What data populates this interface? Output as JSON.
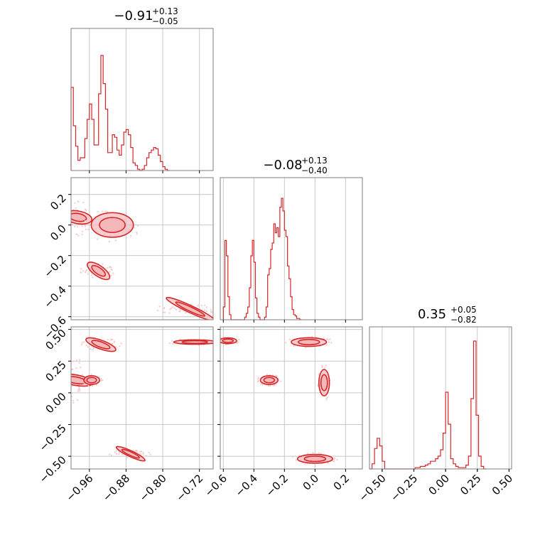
{
  "colors": {
    "main": "#d62728",
    "fill": "#f4b8ba",
    "scatter": "#f7c9cb",
    "grid": "#c8c8c8",
    "frame": "#7f7f7f"
  },
  "chart_data": {
    "type": "corner",
    "parameters": [
      {
        "median": "−0.91",
        "upper": "+0.13",
        "lower": "−0.05",
        "range": [
          -1.0,
          -0.69
        ],
        "ticks": [
          -0.96,
          -0.88,
          -0.8,
          -0.72
        ],
        "tick_labels": [
          "−0.96",
          "−0.88",
          "−0.80",
          "−0.72"
        ]
      },
      {
        "median": "−0.08",
        "upper": "+0.13",
        "lower": "−0.40",
        "range": [
          -0.62,
          0.31
        ],
        "ticks": [
          -0.6,
          -0.4,
          -0.2,
          0.0,
          0.2
        ],
        "tick_labels": [
          "−0.6",
          "−0.4",
          "−0.2",
          "0.0",
          "0.2"
        ]
      },
      {
        "median": "0.35",
        "upper": "+0.05",
        "lower": "−0.82",
        "range": [
          -0.6,
          0.52
        ],
        "ticks": [
          -0.5,
          -0.25,
          0.0,
          0.25,
          0.5
        ],
        "tick_labels": [
          "−0.50",
          "−0.25",
          "0.00",
          "0.25",
          "0.50"
        ]
      }
    ],
    "histograms": [
      {
        "bins": [
          [
            -1.0,
            0.65
          ],
          [
            -0.995,
            0.35
          ],
          [
            -0.99,
            0.19
          ],
          [
            -0.985,
            0.08
          ],
          [
            -0.98,
            0.1
          ],
          [
            -0.975,
            0.1
          ],
          [
            -0.97,
            0.25
          ],
          [
            -0.965,
            0.4
          ],
          [
            -0.96,
            0.52
          ],
          [
            -0.955,
            0.4
          ],
          [
            -0.95,
            0.2
          ],
          [
            -0.945,
            0.2
          ],
          [
            -0.94,
            0.6
          ],
          [
            -0.935,
            0.9
          ],
          [
            -0.93,
            0.68
          ],
          [
            -0.925,
            0.48
          ],
          [
            -0.92,
            0.14
          ],
          [
            -0.915,
            0.14
          ],
          [
            -0.91,
            0.28
          ],
          [
            -0.905,
            0.26
          ],
          [
            -0.9,
            0.16
          ],
          [
            -0.895,
            0.12
          ],
          [
            -0.89,
            0.2
          ],
          [
            -0.885,
            0.3
          ],
          [
            -0.88,
            0.32
          ],
          [
            -0.875,
            0.28
          ],
          [
            -0.87,
            0.18
          ],
          [
            -0.865,
            0.06
          ],
          [
            -0.86,
            0.04
          ],
          [
            -0.855,
            0.01
          ],
          [
            -0.85,
            0.0
          ],
          [
            -0.845,
            0.01
          ],
          [
            -0.84,
            0.04
          ],
          [
            -0.835,
            0.1
          ],
          [
            -0.83,
            0.14
          ],
          [
            -0.825,
            0.16
          ],
          [
            -0.82,
            0.18
          ],
          [
            -0.815,
            0.17
          ],
          [
            -0.81,
            0.12
          ],
          [
            -0.805,
            0.07
          ],
          [
            -0.8,
            0.03
          ],
          [
            -0.795,
            0.01
          ],
          [
            -0.79,
            0.0
          ]
        ]
      },
      {
        "bins": [
          [
            -0.6,
            0.1
          ],
          [
            -0.59,
            0.62
          ],
          [
            -0.58,
            0.5
          ],
          [
            -0.57,
            0.18
          ],
          [
            -0.56,
            0.04
          ],
          [
            -0.55,
            0.0
          ],
          [
            -0.54,
            0.0
          ],
          [
            -0.53,
            0.0
          ],
          [
            -0.52,
            0.0
          ],
          [
            -0.51,
            0.0
          ],
          [
            -0.5,
            0.0
          ],
          [
            -0.49,
            0.0
          ],
          [
            -0.48,
            0.0
          ],
          [
            -0.47,
            0.0
          ],
          [
            -0.46,
            0.02
          ],
          [
            -0.45,
            0.05
          ],
          [
            -0.44,
            0.1
          ],
          [
            -0.43,
            0.25
          ],
          [
            -0.42,
            0.5
          ],
          [
            -0.41,
            0.62
          ],
          [
            -0.4,
            0.45
          ],
          [
            -0.39,
            0.17
          ],
          [
            -0.38,
            0.05
          ],
          [
            -0.37,
            0.02
          ],
          [
            -0.36,
            0.0
          ],
          [
            -0.35,
            0.0
          ],
          [
            -0.34,
            0.0
          ],
          [
            -0.33,
            0.02
          ],
          [
            -0.32,
            0.1
          ],
          [
            -0.31,
            0.35
          ],
          [
            -0.3,
            0.4
          ],
          [
            -0.29,
            0.55
          ],
          [
            -0.28,
            0.6
          ],
          [
            -0.27,
            0.75
          ],
          [
            -0.26,
            0.68
          ],
          [
            -0.25,
            0.72
          ],
          [
            -0.24,
            0.65
          ],
          [
            -0.23,
            0.88
          ],
          [
            -0.22,
            0.95
          ],
          [
            -0.21,
            0.85
          ],
          [
            -0.2,
            0.7
          ],
          [
            -0.19,
            0.65
          ],
          [
            -0.18,
            0.42
          ],
          [
            -0.17,
            0.32
          ],
          [
            -0.16,
            0.18
          ],
          [
            -0.15,
            0.08
          ],
          [
            -0.14,
            0.04
          ],
          [
            -0.13,
            0.03
          ],
          [
            -0.12,
            0.01
          ],
          [
            -0.11,
            0.01
          ],
          [
            -0.1,
            0.0
          ]
        ]
      },
      {
        "bins": [
          [
            -0.6,
            0.0
          ],
          [
            -0.58,
            0.04
          ],
          [
            -0.56,
            0.16
          ],
          [
            -0.54,
            0.24
          ],
          [
            -0.52,
            0.18
          ],
          [
            -0.5,
            0.06
          ],
          [
            -0.48,
            0.0
          ],
          [
            -0.46,
            0.0
          ],
          [
            -0.44,
            0.0
          ],
          [
            -0.42,
            0.0
          ],
          [
            -0.4,
            0.0
          ],
          [
            -0.38,
            0.0
          ],
          [
            -0.36,
            0.0
          ],
          [
            -0.34,
            0.0
          ],
          [
            -0.32,
            0.0
          ],
          [
            -0.3,
            0.0
          ],
          [
            -0.28,
            0.0
          ],
          [
            -0.26,
            0.0
          ],
          [
            -0.24,
            0.01
          ],
          [
            -0.22,
            0.01
          ],
          [
            -0.2,
            0.02
          ],
          [
            -0.18,
            0.02
          ],
          [
            -0.16,
            0.03
          ],
          [
            -0.14,
            0.04
          ],
          [
            -0.12,
            0.06
          ],
          [
            -0.1,
            0.06
          ],
          [
            -0.08,
            0.08
          ],
          [
            -0.06,
            0.1
          ],
          [
            -0.04,
            0.15
          ],
          [
            -0.02,
            0.28
          ],
          [
            0.0,
            0.6
          ],
          [
            0.02,
            0.35
          ],
          [
            0.04,
            0.08
          ],
          [
            0.06,
            0.04
          ],
          [
            0.08,
            0.02
          ],
          [
            0.1,
            0.01
          ],
          [
            0.12,
            0.01
          ],
          [
            0.14,
            0.01
          ],
          [
            0.16,
            0.03
          ],
          [
            0.18,
            0.1
          ],
          [
            0.2,
            0.55
          ],
          [
            0.22,
            1.0
          ],
          [
            0.24,
            0.42
          ],
          [
            0.26,
            0.1
          ],
          [
            0.28,
            0.02
          ],
          [
            0.3,
            0.0
          ]
        ]
      }
    ],
    "pairs": [
      {
        "x": 0,
        "y": 1,
        "clusters": [
          {
            "cx": -0.985,
            "cy": 0.05,
            "rx": 0.012,
            "ry": 0.08,
            "angle": 80
          },
          {
            "cx": -0.91,
            "cy": 0.0,
            "rx": 0.04,
            "ry": 0.07,
            "angle": 0
          },
          {
            "cx": -0.94,
            "cy": -0.3,
            "rx": 0.025,
            "ry": 0.03,
            "angle": -35
          },
          {
            "cx": -0.74,
            "cy": -0.55,
            "rx": 0.05,
            "ry": 0.02,
            "angle": -25
          }
        ]
      },
      {
        "x": 0,
        "y": 2,
        "clusters": [
          {
            "cx": -0.99,
            "cy": 0.1,
            "rx": 0.01,
            "ry": 0.12,
            "angle": 80
          },
          {
            "cx": -0.955,
            "cy": 0.1,
            "rx": 0.015,
            "ry": 0.03,
            "angle": 0
          },
          {
            "cx": -0.935,
            "cy": 0.38,
            "rx": 0.03,
            "ry": 0.03,
            "angle": -20
          },
          {
            "cx": -0.73,
            "cy": 0.4,
            "rx": 0.04,
            "ry": 0.015,
            "angle": 0
          },
          {
            "cx": -0.87,
            "cy": -0.48,
            "rx": 0.03,
            "ry": 0.02,
            "angle": -25
          }
        ]
      },
      {
        "x": 1,
        "y": 2,
        "clusters": [
          {
            "cx": -0.57,
            "cy": 0.41,
            "rx": 0.05,
            "ry": 0.02,
            "angle": 0
          },
          {
            "cx": -0.3,
            "cy": 0.1,
            "rx": 0.05,
            "ry": 0.03,
            "angle": 0
          },
          {
            "cx": -0.04,
            "cy": 0.4,
            "rx": 0.1,
            "ry": 0.03,
            "angle": 0
          },
          {
            "cx": 0.06,
            "cy": 0.08,
            "rx": 0.03,
            "ry": 0.09,
            "angle": 0
          },
          {
            "cx": 0.0,
            "cy": -0.52,
            "rx": 0.1,
            "ry": 0.03,
            "angle": 0
          }
        ]
      }
    ],
    "pair_ticks": {
      "y_for_param_1": [
        0.2,
        0.0,
        -0.2,
        -0.4,
        -0.6
      ],
      "y_labels_for_param_1": [
        "0.2",
        "0.0",
        "−0.2",
        "−0.4",
        "−0.6"
      ],
      "y_for_param_2": [
        0.5,
        0.25,
        0.0,
        -0.25,
        -0.5
      ],
      "y_labels_for_param_2": [
        "0.50",
        "0.25",
        "0.00",
        "−0.25",
        "−0.50"
      ]
    }
  }
}
